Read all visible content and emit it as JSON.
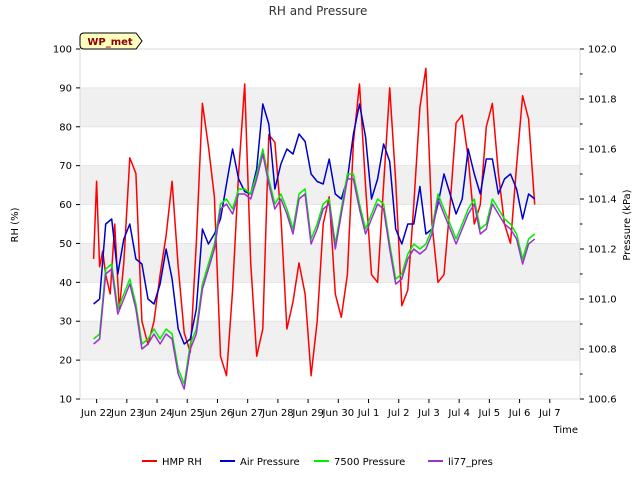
{
  "chart_data": {
    "type": "line",
    "title": "RH and Pressure",
    "xlabel": "Time",
    "ylabel": "RH (%)",
    "y2label": "Pressure (kPa)",
    "badge": "WP_met",
    "x_ticks": [
      "Jun 22",
      "Jun 23",
      "Jun 24",
      "Jun 25",
      "Jun 26",
      "Jun 27",
      "Jun 28",
      "Jun 29",
      "Jun 30",
      "Jul 1",
      "Jul 2",
      "Jul 3",
      "Jul 4",
      "Jul 5",
      "Jul 6",
      "Jul 7"
    ],
    "xlim": [
      -0.55,
      16.0
    ],
    "ylim": [
      10,
      100
    ],
    "y_ticks": [
      10,
      20,
      30,
      40,
      50,
      60,
      70,
      80,
      90,
      100
    ],
    "y2lim": [
      100.6,
      102.0
    ],
    "y2_ticks": [
      "100.6",
      "100.8",
      "101.0",
      "101.2",
      "101.4",
      "101.6",
      "101.8",
      "102.0"
    ],
    "bands": [
      [
        20,
        30
      ],
      [
        40,
        50
      ],
      [
        60,
        70
      ],
      [
        80,
        90
      ]
    ],
    "legend_position": "bottom",
    "series": [
      {
        "name": "HMP RH",
        "axis": "left",
        "color": "#ff0000",
        "x": [
          -0.1,
          0.0,
          0.1,
          0.2,
          0.3,
          0.45,
          0.6,
          0.75,
          0.9,
          1.1,
          1.3,
          1.5,
          1.7,
          1.9,
          2.1,
          2.3,
          2.5,
          2.7,
          2.9,
          3.1,
          3.3,
          3.5,
          3.7,
          3.9,
          4.1,
          4.3,
          4.5,
          4.7,
          4.9,
          5.1,
          5.3,
          5.5,
          5.7,
          5.9,
          6.1,
          6.3,
          6.5,
          6.7,
          6.9,
          7.1,
          7.3,
          7.5,
          7.7,
          7.9,
          8.1,
          8.3,
          8.5,
          8.7,
          8.9,
          9.1,
          9.3,
          9.5,
          9.7,
          9.9,
          10.1,
          10.3,
          10.5,
          10.7,
          10.9,
          11.1,
          11.3,
          11.5,
          11.7,
          11.9,
          12.1,
          12.3,
          12.5,
          12.7,
          12.9,
          13.1,
          13.3,
          13.5,
          13.7,
          13.9,
          14.1,
          14.3,
          14.5
        ],
        "values": [
          46,
          66,
          44,
          48,
          42,
          37,
          55,
          33,
          45,
          72,
          68,
          30,
          24,
          30,
          42,
          52,
          66,
          44,
          27,
          22,
          50,
          86,
          75,
          62,
          21,
          16,
          38,
          68,
          91,
          45,
          21,
          28,
          78,
          76,
          57,
          28,
          35,
          45,
          37,
          16,
          30,
          55,
          62,
          37,
          31,
          42,
          76,
          91,
          65,
          42,
          40,
          65,
          90,
          66,
          34,
          38,
          60,
          85,
          95,
          55,
          40,
          42,
          60,
          81,
          83,
          72,
          55,
          60,
          80,
          86,
          68,
          55,
          50,
          70,
          88,
          82,
          60
        ],
        "style": {
          "x": [],
          "values": []
        }
      },
      {
        "name": "Air Pressure",
        "axis": "right",
        "color": "#0000cc",
        "x": [
          -0.1,
          0.1,
          0.3,
          0.5,
          0.7,
          0.9,
          1.1,
          1.3,
          1.5,
          1.7,
          1.9,
          2.1,
          2.3,
          2.5,
          2.7,
          2.9,
          3.1,
          3.3,
          3.5,
          3.7,
          3.9,
          4.1,
          4.3,
          4.5,
          4.7,
          4.9,
          5.1,
          5.3,
          5.5,
          5.7,
          5.9,
          6.1,
          6.3,
          6.5,
          6.7,
          6.9,
          7.1,
          7.3,
          7.5,
          7.7,
          7.9,
          8.1,
          8.3,
          8.5,
          8.7,
          8.9,
          9.1,
          9.3,
          9.5,
          9.7,
          9.9,
          10.1,
          10.3,
          10.5,
          10.7,
          10.9,
          11.1,
          11.3,
          11.5,
          11.7,
          11.9,
          12.1,
          12.3,
          12.5,
          12.7,
          12.9,
          13.1,
          13.3,
          13.5,
          13.7,
          13.9,
          14.1,
          14.3,
          14.5
        ],
        "values": [
          100.98,
          101.0,
          101.3,
          101.32,
          101.1,
          101.24,
          101.3,
          101.16,
          101.14,
          101.0,
          100.98,
          101.06,
          101.2,
          101.08,
          100.88,
          100.82,
          100.84,
          100.96,
          101.28,
          101.22,
          101.26,
          101.32,
          101.46,
          101.6,
          101.48,
          101.43,
          101.42,
          101.52,
          101.78,
          101.7,
          101.44,
          101.54,
          101.6,
          101.58,
          101.66,
          101.63,
          101.5,
          101.47,
          101.46,
          101.56,
          101.42,
          101.4,
          101.48,
          101.66,
          101.78,
          101.65,
          101.4,
          101.48,
          101.62,
          101.55,
          101.28,
          101.22,
          101.3,
          101.3,
          101.45,
          101.26,
          101.28,
          101.38,
          101.5,
          101.42,
          101.34,
          101.4,
          101.6,
          101.5,
          101.42,
          101.56,
          101.56,
          101.42,
          101.48,
          101.5,
          101.44,
          101.32,
          101.42,
          101.4
        ],
        "style": {
          "x": [],
          "values": []
        }
      },
      {
        "name": "7500 Pressure",
        "axis": "right",
        "color": "#00ee00",
        "x": [
          -0.1,
          0.1,
          0.3,
          0.5,
          0.7,
          0.9,
          1.1,
          1.3,
          1.5,
          1.7,
          1.9,
          2.1,
          2.3,
          2.5,
          2.7,
          2.9,
          3.1,
          3.3,
          3.5,
          3.7,
          3.9,
          4.1,
          4.3,
          4.5,
          4.7,
          4.9,
          5.1,
          5.3,
          5.5,
          5.7,
          5.9,
          6.1,
          6.3,
          6.5,
          6.7,
          6.9,
          7.1,
          7.3,
          7.5,
          7.7,
          7.9,
          8.1,
          8.3,
          8.5,
          8.7,
          8.9,
          9.1,
          9.3,
          9.5,
          9.7,
          9.9,
          10.1,
          10.3,
          10.5,
          10.7,
          10.9,
          11.1,
          11.3,
          11.5,
          11.7,
          11.9,
          12.1,
          12.3,
          12.5,
          12.7,
          12.9,
          13.1,
          13.3,
          13.5,
          13.7,
          13.9,
          14.1,
          14.3,
          14.5
        ],
        "values": [
          100.84,
          100.86,
          101.12,
          101.14,
          100.96,
          101.02,
          101.08,
          100.98,
          100.82,
          100.84,
          100.88,
          100.84,
          100.88,
          100.86,
          100.72,
          100.66,
          100.82,
          100.88,
          101.06,
          101.14,
          101.22,
          101.38,
          101.4,
          101.36,
          101.44,
          101.44,
          101.42,
          101.5,
          101.6,
          101.48,
          101.38,
          101.42,
          101.36,
          101.28,
          101.42,
          101.44,
          101.24,
          101.3,
          101.38,
          101.4,
          101.22,
          101.36,
          101.5,
          101.5,
          101.38,
          101.28,
          101.34,
          101.4,
          101.38,
          101.22,
          101.08,
          101.1,
          101.18,
          101.22,
          101.2,
          101.22,
          101.28,
          101.42,
          101.36,
          101.3,
          101.24,
          101.3,
          101.36,
          101.4,
          101.28,
          101.3,
          101.4,
          101.36,
          101.32,
          101.3,
          101.26,
          101.16,
          101.24,
          101.26
        ],
        "style": {
          "x": [],
          "values": []
        }
      },
      {
        "name": "li77_pres",
        "axis": "right",
        "color": "#9933cc",
        "x": [
          -0.1,
          0.1,
          0.3,
          0.5,
          0.7,
          0.9,
          1.1,
          1.3,
          1.5,
          1.7,
          1.9,
          2.1,
          2.3,
          2.5,
          2.7,
          2.9,
          3.1,
          3.3,
          3.5,
          3.7,
          3.9,
          4.1,
          4.3,
          4.5,
          4.7,
          4.9,
          5.1,
          5.3,
          5.5,
          5.7,
          5.9,
          6.1,
          6.3,
          6.5,
          6.7,
          6.9,
          7.1,
          7.3,
          7.5,
          7.7,
          7.9,
          8.1,
          8.3,
          8.5,
          8.7,
          8.9,
          9.1,
          9.3,
          9.5,
          9.7,
          9.9,
          10.1,
          10.3,
          10.5,
          10.7,
          10.9,
          11.1,
          11.3,
          11.5,
          11.7,
          11.9,
          12.1,
          12.3,
          12.5,
          12.7,
          12.9,
          13.1,
          13.3,
          13.5,
          13.7,
          13.9,
          14.1,
          14.3,
          14.5
        ],
        "values": [
          100.82,
          100.84,
          101.1,
          101.12,
          100.94,
          101.0,
          101.06,
          100.96,
          100.8,
          100.82,
          100.86,
          100.82,
          100.86,
          100.84,
          100.7,
          100.64,
          100.8,
          100.86,
          101.04,
          101.12,
          101.2,
          101.36,
          101.38,
          101.34,
          101.42,
          101.42,
          101.4,
          101.48,
          101.58,
          101.46,
          101.36,
          101.4,
          101.34,
          101.26,
          101.4,
          101.42,
          101.22,
          101.28,
          101.36,
          101.38,
          101.2,
          101.34,
          101.48,
          101.48,
          101.36,
          101.26,
          101.32,
          101.38,
          101.36,
          101.2,
          101.06,
          101.08,
          101.16,
          101.2,
          101.18,
          101.2,
          101.26,
          101.4,
          101.34,
          101.28,
          101.22,
          101.28,
          101.34,
          101.38,
          101.26,
          101.28,
          101.38,
          101.34,
          101.3,
          101.28,
          101.24,
          101.14,
          101.22,
          101.24
        ],
        "style": {
          "x": [],
          "values": []
        }
      }
    ]
  }
}
